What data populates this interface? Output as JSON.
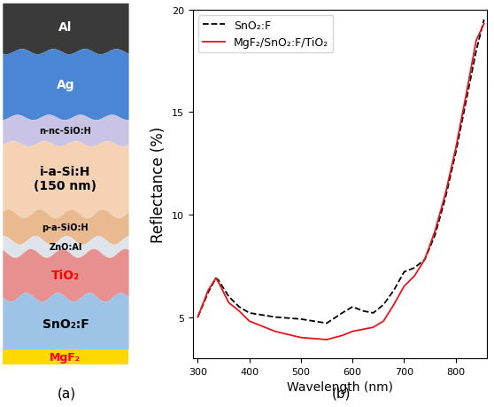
{
  "diagram": {
    "caption": "(a)",
    "layers": [
      {
        "label": "Al",
        "color": "#3a3a3a",
        "text_color": "#ffffff"
      },
      {
        "label": "Ag",
        "color": "#4a86d4",
        "text_color": "#ffffff"
      },
      {
        "label": "n-nc-SiO:H",
        "color": "#c9c3e6",
        "text_color": "#000000"
      },
      {
        "label": "i-a-Si:H\n(150 nm)",
        "color": "#f6d2b4",
        "text_color": "#000000"
      },
      {
        "label": "p-a-SiO:H",
        "color": "#e9b98f",
        "text_color": "#000000"
      },
      {
        "label": "ZnO:Al",
        "color": "#dfe3ea",
        "text_color": "#000000"
      },
      {
        "label": "TiO₂",
        "color": "#e88f8f",
        "text_color": "#ff0000"
      },
      {
        "label": "SnO₂:F",
        "color": "#9dc3e6",
        "text_color": "#000000"
      },
      {
        "label": "MgF₂",
        "color": "#ffd800",
        "text_color": "#ff0000"
      }
    ]
  },
  "chart_data": {
    "type": "line",
    "caption": "(b)",
    "x_label": "Wavelength (nm)",
    "y_label": "Reflectance (%)",
    "xlim": [
      290,
      860
    ],
    "ylim": [
      3,
      20
    ],
    "xticks": [
      300,
      400,
      500,
      600,
      700,
      800
    ],
    "yticks": [
      5,
      10,
      15,
      20
    ],
    "legend": "upper left",
    "x": [
      300,
      320,
      335,
      340,
      360,
      380,
      400,
      450,
      500,
      550,
      580,
      600,
      620,
      640,
      660,
      680,
      700,
      720,
      740,
      760,
      780,
      800,
      820,
      840,
      855
    ],
    "series": [
      {
        "name": "SnO₂:F",
        "color": "#000000",
        "line_style": "dashed",
        "values": [
          5.0,
          6.2,
          6.9,
          6.8,
          6.0,
          5.5,
          5.2,
          5.0,
          4.9,
          4.7,
          5.2,
          5.5,
          5.3,
          5.2,
          5.6,
          6.3,
          7.2,
          7.4,
          7.8,
          9.0,
          10.8,
          13.0,
          15.5,
          18.0,
          19.5
        ]
      },
      {
        "name": "MgF₂/SnO₂:F/TiO₂",
        "color": "#e8141a",
        "line_style": "solid",
        "values": [
          5.0,
          6.3,
          6.9,
          6.7,
          5.7,
          5.3,
          4.8,
          4.3,
          4.0,
          3.9,
          4.1,
          4.3,
          4.4,
          4.5,
          4.8,
          5.6,
          6.5,
          7.0,
          7.8,
          9.2,
          11.0,
          13.2,
          15.8,
          18.5,
          19.3
        ]
      }
    ]
  }
}
